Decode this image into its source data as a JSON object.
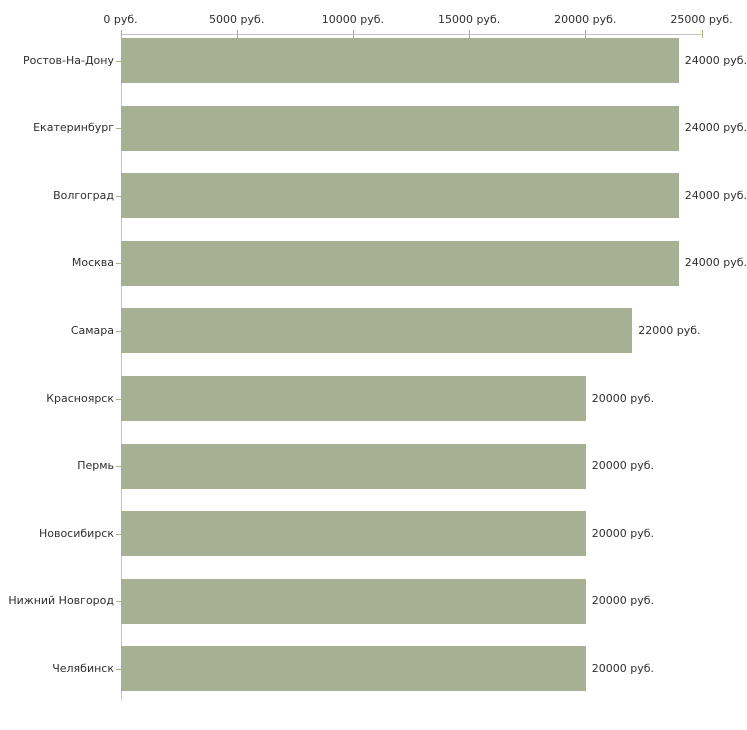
{
  "chart_data": {
    "type": "bar",
    "orientation": "horizontal",
    "title": "",
    "xlabel": "",
    "ylabel": "",
    "unit": "руб.",
    "xlim": [
      0,
      25000
    ],
    "grid": false,
    "legend": "none",
    "categories": [
      "Ростов-На-Дону",
      "Екатеринбург",
      "Волгоград",
      "Москва",
      "Самара",
      "Красноярск",
      "Пермь",
      "Новосибирск",
      "Нижний Новгород",
      "Челябинск"
    ],
    "values": [
      24000,
      24000,
      24000,
      24000,
      22000,
      20000,
      20000,
      20000,
      20000,
      20000
    ],
    "value_labels": [
      "24000 руб.",
      "24000 руб.",
      "24000 руб.",
      "24000 руб.",
      "22000 руб.",
      "20000 руб.",
      "20000 руб.",
      "20000 руб.",
      "20000 руб.",
      "20000 руб."
    ],
    "x_ticks": [
      {
        "value": 0,
        "label": "0 руб."
      },
      {
        "value": 5000,
        "label": "5000 руб."
      },
      {
        "value": 10000,
        "label": "10000 руб."
      },
      {
        "value": 15000,
        "label": "15000 руб."
      },
      {
        "value": 20000,
        "label": "20000 руб."
      },
      {
        "value": 25000,
        "label": "25000 руб."
      }
    ],
    "colors": {
      "bar": "#a8b093",
      "axis_line": "#c3c3c3",
      "tick": "#b0b080",
      "text": "#2f2f2f"
    }
  }
}
